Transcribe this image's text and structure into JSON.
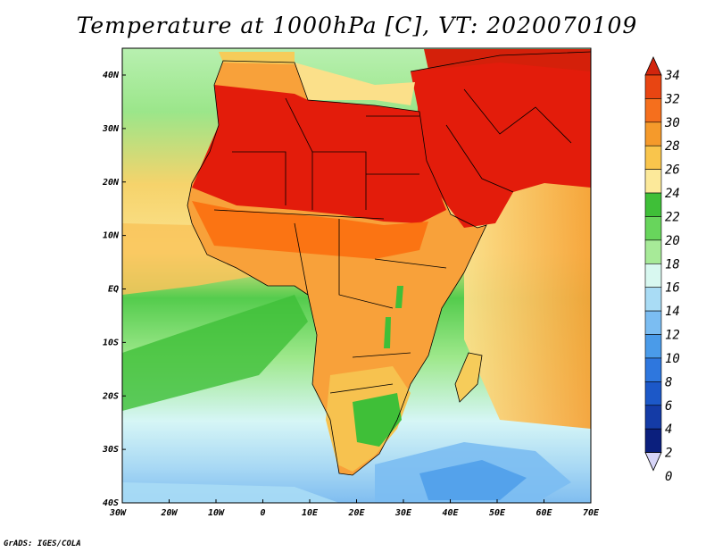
{
  "title": "Temperature at 1000hPa [C], VT: 2020070109",
  "credit": "GrADS: IGES/COLA",
  "map": {
    "lon_range": [
      -30,
      75
    ],
    "lat_range": [
      -40,
      45
    ],
    "x_ticks": [
      "30W",
      "20W",
      "10W",
      "0",
      "10E",
      "20E",
      "30E",
      "40E",
      "50E",
      "60E",
      "70E"
    ],
    "y_ticks": [
      "40N",
      "30N",
      "20N",
      "10N",
      "EQ",
      "10S",
      "20S",
      "30S",
      "40S"
    ],
    "ocean_gradient": [
      "#f0a52d",
      "#fbe080",
      "#3ec23e",
      "#9ee88b",
      "#d6f6f6",
      "#9ad0f0"
    ],
    "land_colors": [
      "#e31c0b",
      "#fb6f10",
      "#f99d23",
      "#f6cc5a"
    ]
  },
  "colorbar": {
    "labels": [
      "34",
      "32",
      "30",
      "28",
      "26",
      "24",
      "22",
      "20",
      "18",
      "16",
      "14",
      "12",
      "10",
      "8",
      "6",
      "4",
      "2",
      "0"
    ],
    "colors": [
      "#d2250d",
      "#e84512",
      "#f56f1d",
      "#f59a2b",
      "#f9c54c",
      "#fce99a",
      "#3fbf38",
      "#68d55c",
      "#a7ea98",
      "#d8f8f0",
      "#a9dcf5",
      "#7bbdf2",
      "#4a9be9",
      "#2e77de",
      "#1c58c8",
      "#143ba6",
      "#0b1f7d",
      "#d7d5f7"
    ]
  }
}
